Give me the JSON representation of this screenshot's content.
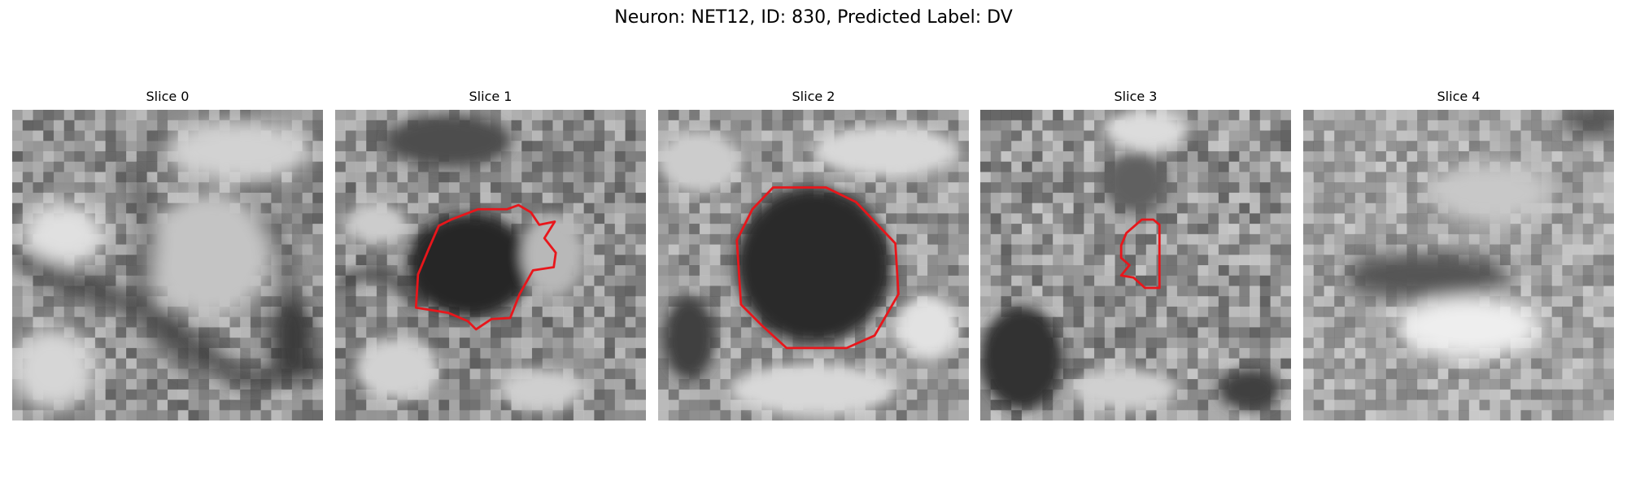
{
  "figure": {
    "title": "Neuron: NET12, ID: 830, Predicted Label: DV"
  },
  "slices": [
    {
      "title": "Slice 0",
      "has_outline": false
    },
    {
      "title": "Slice 1",
      "has_outline": true
    },
    {
      "title": "Slice 2",
      "has_outline": true
    },
    {
      "title": "Slice 3",
      "has_outline": true
    },
    {
      "title": "Slice 4",
      "has_outline": false
    }
  ],
  "colors": {
    "outline": "#e8161b",
    "background": "#ffffff"
  }
}
